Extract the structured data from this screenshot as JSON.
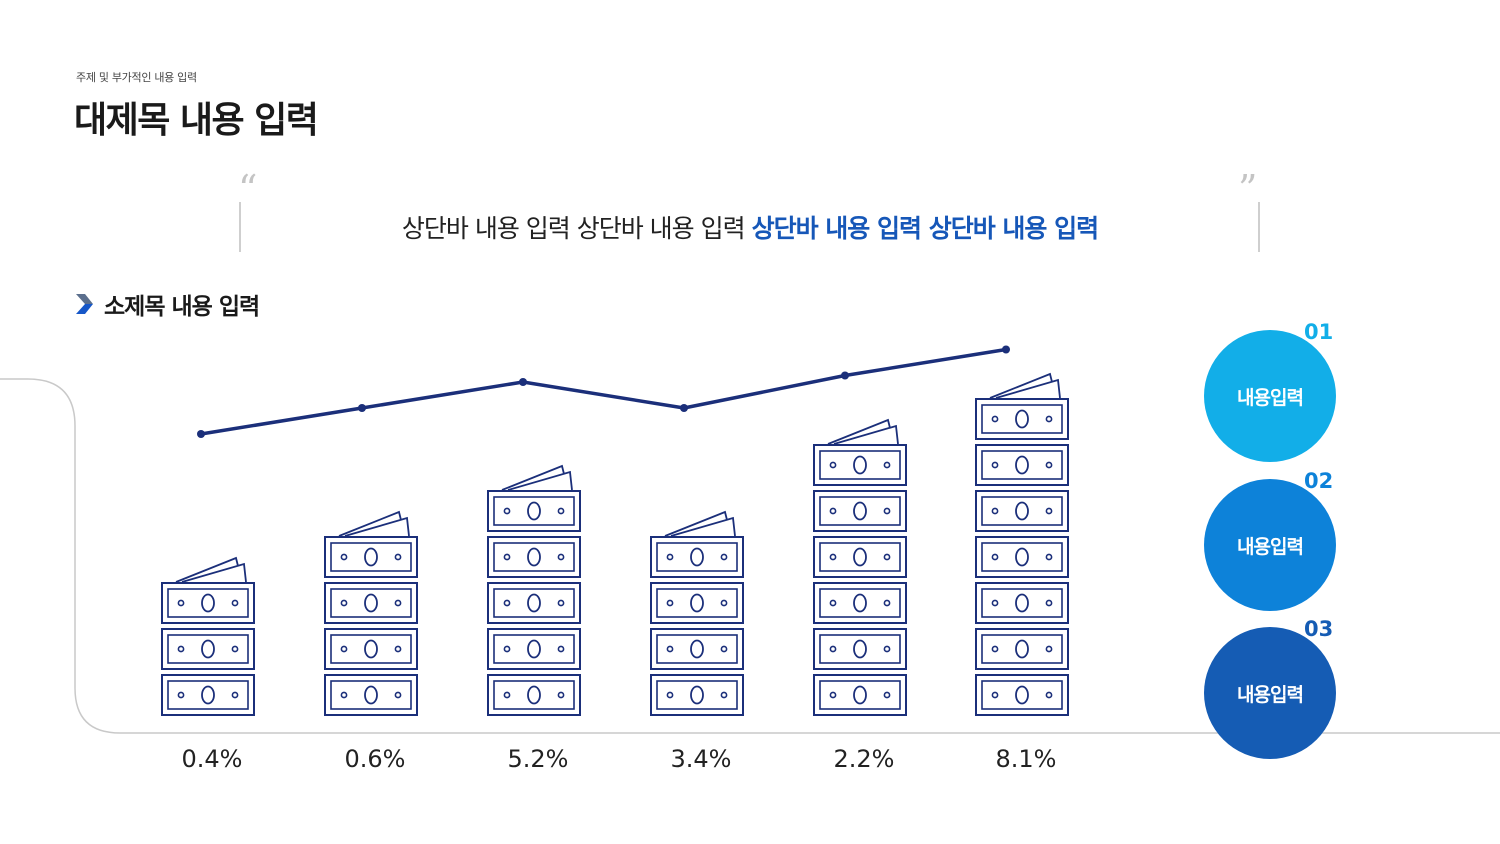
{
  "header": {
    "subtitle": "주제 및 부가적인 내용 입력",
    "title": "대제목 내용 입력"
  },
  "quote": {
    "open_mark": "“",
    "close_mark": "”",
    "text_normal": "상단바 내용 입력 상단바 내용 입력 ",
    "text_highlight": "상단바 내용 입력 상단바 내용 입력"
  },
  "section": {
    "icon": "chevron-right-icon",
    "title": "소제목 내용 입력"
  },
  "chart_data": {
    "type": "bar",
    "categories": [],
    "values": [
      3,
      4,
      5,
      4,
      6,
      7
    ],
    "labels": [
      "0.4%",
      "0.6%",
      "5.2%",
      "3.4%",
      "2.2%",
      "8.1%"
    ],
    "line_series": [
      0.4,
      1.2,
      2.0,
      1.2,
      2.2,
      3.0
    ],
    "unit_icon": "banknote-stack-icon",
    "colors": {
      "mark": "#1b2f7a",
      "line": "#1b2f7a",
      "panel_border": "#c9c9c9"
    }
  },
  "legend": [
    {
      "number": "01",
      "label": "내용입력",
      "color": "#12aee8",
      "number_color": "#12aee8"
    },
    {
      "number": "02",
      "label": "내용입력",
      "color": "#0d82d9",
      "number_color": "#0d82d9"
    },
    {
      "number": "03",
      "label": "내용입력",
      "color": "#155cb4",
      "number_color": "#155cb4"
    }
  ]
}
